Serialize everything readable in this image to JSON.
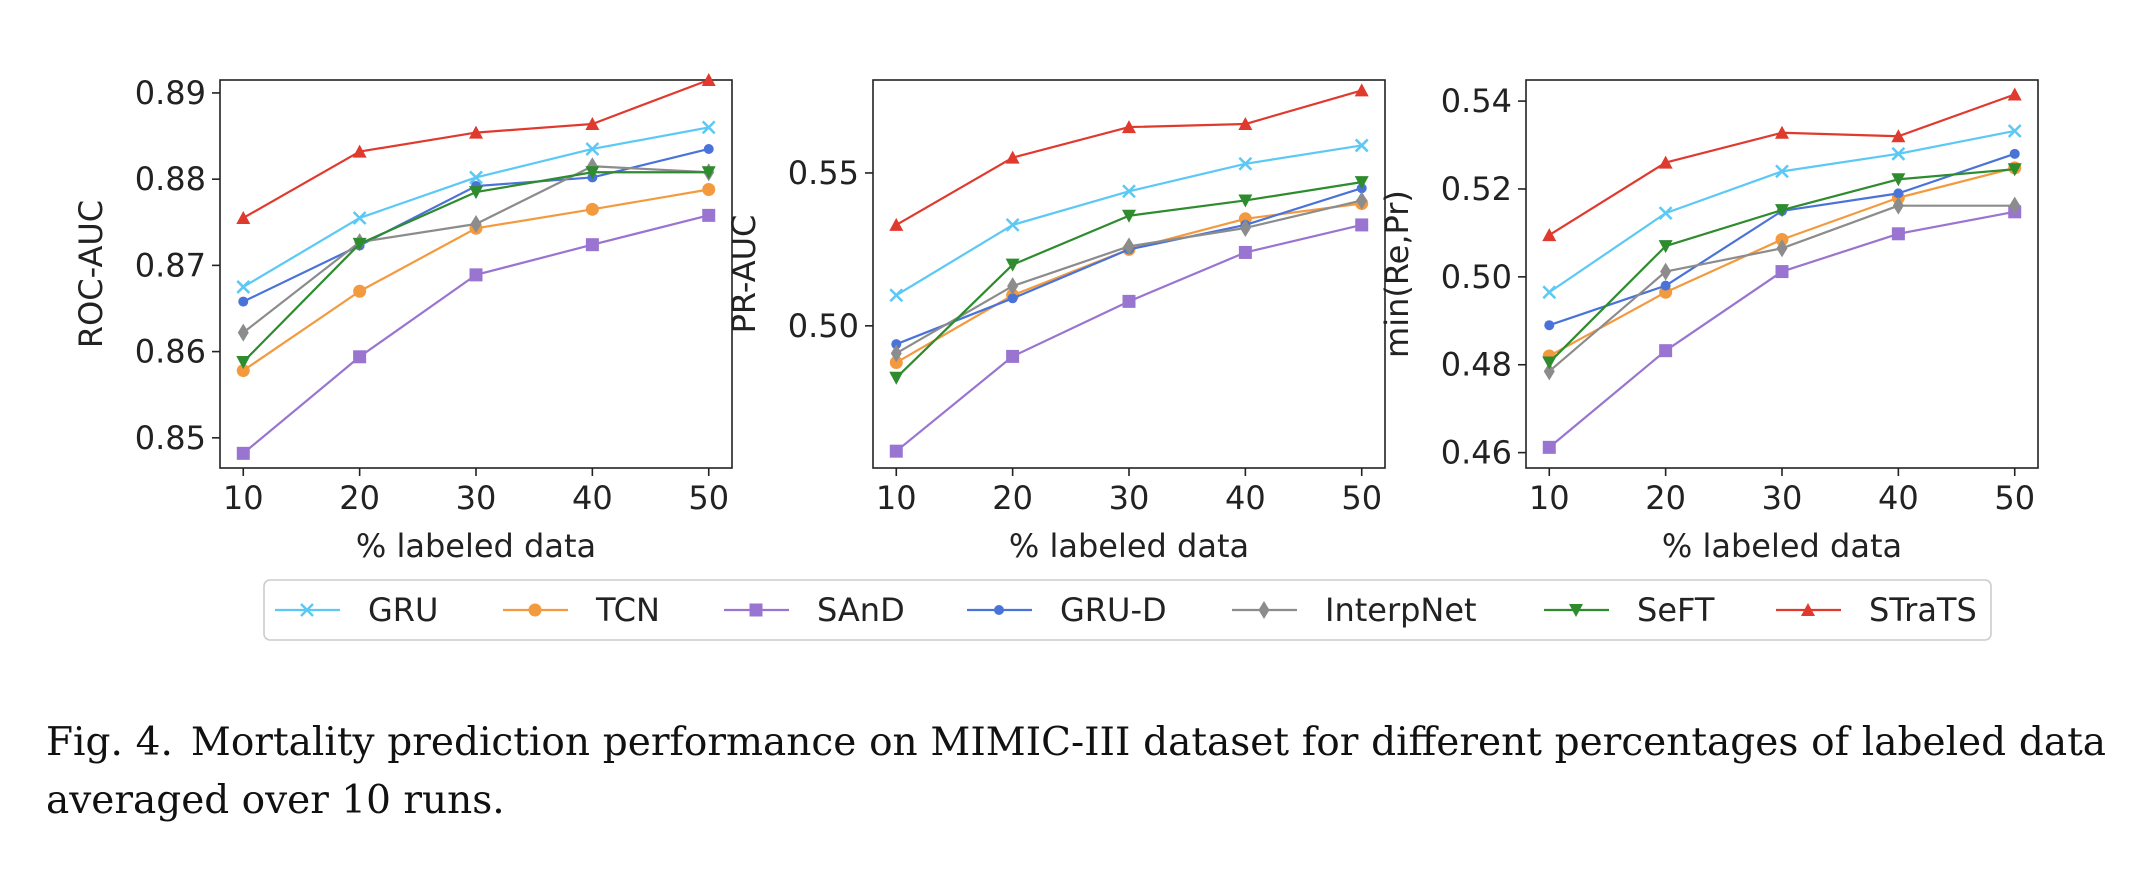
{
  "chart_data": [
    {
      "type": "line",
      "xlabel": "% labeled data",
      "ylabel": "ROC-AUC",
      "x": [
        10,
        20,
        30,
        40,
        50
      ],
      "xlim": [
        8,
        52
      ],
      "ylim": [
        0.8465,
        0.8915
      ],
      "yticks": [
        0.85,
        0.86,
        0.87,
        0.88,
        0.89
      ],
      "ytick_labels": [
        "0.85",
        "0.86",
        "0.87",
        "0.88",
        "0.89"
      ],
      "grid": false,
      "series": [
        {
          "name": "GRU",
          "values": [
            0.8675,
            0.8755,
            0.8802,
            0.8835,
            0.886
          ]
        },
        {
          "name": "TCN",
          "values": [
            0.8578,
            0.867,
            0.8743,
            0.8765,
            0.8788
          ]
        },
        {
          "name": "SAnD",
          "values": [
            0.8482,
            0.8594,
            0.8689,
            0.8724,
            0.8758
          ]
        },
        {
          "name": "GRU-D",
          "values": [
            0.8658,
            0.8723,
            0.8792,
            0.8802,
            0.8835
          ]
        },
        {
          "name": "InterpNet",
          "values": [
            0.8622,
            0.8727,
            0.8748,
            0.8815,
            0.8808
          ]
        },
        {
          "name": "SeFT",
          "values": [
            0.8588,
            0.8725,
            0.8785,
            0.8808,
            0.8808
          ]
        },
        {
          "name": "STraTS",
          "values": [
            0.8755,
            0.8832,
            0.8854,
            0.8864,
            0.8915
          ]
        }
      ]
    },
    {
      "type": "line",
      "xlabel": "% labeled data",
      "ylabel": "PR-AUC",
      "x": [
        10,
        20,
        30,
        40,
        50
      ],
      "xlim": [
        8,
        52
      ],
      "ylim": [
        0.4535,
        0.5804
      ],
      "yticks": [
        0.5,
        0.55
      ],
      "ytick_labels": [
        "0.50",
        "0.55"
      ],
      "grid": false,
      "series": [
        {
          "name": "GRU",
          "values": [
            0.51,
            0.533,
            0.544,
            0.553,
            0.559
          ]
        },
        {
          "name": "TCN",
          "values": [
            0.488,
            0.51,
            0.525,
            0.535,
            0.54
          ]
        },
        {
          "name": "SAnD",
          "values": [
            0.459,
            0.49,
            0.508,
            0.524,
            0.533
          ]
        },
        {
          "name": "GRU-D",
          "values": [
            0.494,
            0.509,
            0.525,
            0.533,
            0.545
          ]
        },
        {
          "name": "InterpNet",
          "values": [
            0.491,
            0.513,
            0.526,
            0.532,
            0.541
          ]
        },
        {
          "name": "SeFT",
          "values": [
            0.483,
            0.52,
            0.536,
            0.541,
            0.547
          ]
        },
        {
          "name": "STraTS",
          "values": [
            0.533,
            0.555,
            0.565,
            0.566,
            0.577
          ]
        }
      ]
    },
    {
      "type": "line",
      "xlabel": "% labeled data",
      "ylabel": "min(Re,Pr)",
      "x": [
        10,
        20,
        30,
        40,
        50
      ],
      "xlim": [
        8,
        52
      ],
      "ylim": [
        0.4565,
        0.5448
      ],
      "yticks": [
        0.46,
        0.48,
        0.5,
        0.52,
        0.54
      ],
      "ytick_labels": [
        "0.46",
        "0.48",
        "0.50",
        "0.52",
        "0.54"
      ],
      "grid": false,
      "series": [
        {
          "name": "GRU",
          "values": [
            0.4965,
            0.5145,
            0.524,
            0.528,
            0.5332
          ]
        },
        {
          "name": "TCN",
          "values": [
            0.482,
            0.4965,
            0.5085,
            0.518,
            0.5248
          ]
        },
        {
          "name": "SAnD",
          "values": [
            0.4612,
            0.4832,
            0.5012,
            0.5098,
            0.5148
          ]
        },
        {
          "name": "GRU-D",
          "values": [
            0.489,
            0.498,
            0.515,
            0.519,
            0.528
          ]
        },
        {
          "name": "InterpNet",
          "values": [
            0.4785,
            0.5012,
            0.5065,
            0.5162,
            0.5162
          ]
        },
        {
          "name": "SeFT",
          "values": [
            0.4805,
            0.507,
            0.5152,
            0.5222,
            0.5245
          ]
        },
        {
          "name": "STraTS",
          "values": [
            0.5095,
            0.526,
            0.5328,
            0.532,
            0.5415
          ]
        }
      ]
    }
  ],
  "legend": {
    "placement": "bottom-center",
    "entries": [
      {
        "name": "GRU",
        "color": "#5bc8f5",
        "marker": "x"
      },
      {
        "name": "TCN",
        "color": "#f39a3f",
        "marker": "circle"
      },
      {
        "name": "SAnD",
        "color": "#9a74d1",
        "marker": "square"
      },
      {
        "name": "GRU-D",
        "color": "#4a73d9",
        "marker": "small-circle"
      },
      {
        "name": "InterpNet",
        "color": "#8c8c8c",
        "marker": "diamond"
      },
      {
        "name": "SeFT",
        "color": "#2e8b2e",
        "marker": "triangle-down"
      },
      {
        "name": "STraTS",
        "color": "#e03a2f",
        "marker": "triangle-up"
      }
    ]
  },
  "caption": {
    "number": "Fig. 4.",
    "text": "Mortality prediction performance on MIMIC-III dataset for different percentages of labeled data averaged over 10 runs."
  }
}
